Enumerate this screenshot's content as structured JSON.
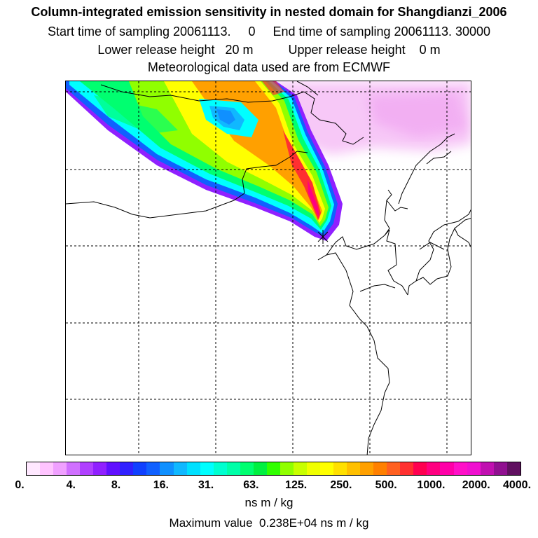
{
  "header": {
    "title": "Column-integrated emission sensitivity in nested domain for Shangdianzi_2006",
    "sampling": "Start time of sampling 20061113.     0     End time of sampling 20061113. 30000",
    "heights": "Lower release height   20 m          Upper release height    0 m",
    "meteo": "Meteorological data used are from ECMWF"
  },
  "map": {
    "background": "#ffffff",
    "source_marker": "release-site-marker"
  },
  "colorbar": {
    "colors": [
      "#ffe8ff",
      "#ffc4ff",
      "#f0a0ff",
      "#d070ff",
      "#b040ff",
      "#9020ff",
      "#6010ff",
      "#3020ff",
      "#1040ff",
      "#1060ff",
      "#1090ff",
      "#10b8ff",
      "#00e0ff",
      "#00ffff",
      "#00ffd0",
      "#00ffa8",
      "#00ff70",
      "#00f040",
      "#30ff00",
      "#90ff00",
      "#c8ff00",
      "#f0ff00",
      "#ffff00",
      "#ffe000",
      "#ffc000",
      "#ffa000",
      "#ff8000",
      "#ff6020",
      "#ff3030",
      "#ff0050",
      "#ff0080",
      "#ff00a8",
      "#ff10c8",
      "#f010d0",
      "#c010b0",
      "#901090",
      "#601060"
    ],
    "tick_labels": [
      "0.",
      "4.",
      "8.",
      "16.",
      "31.",
      "63.",
      "125.",
      "250.",
      "500.",
      "1000.",
      "2000.",
      "4000."
    ],
    "units": "ns m / kg"
  },
  "footer": {
    "max_value": "Maximum value  0.238E+04 ns m / kg"
  }
}
